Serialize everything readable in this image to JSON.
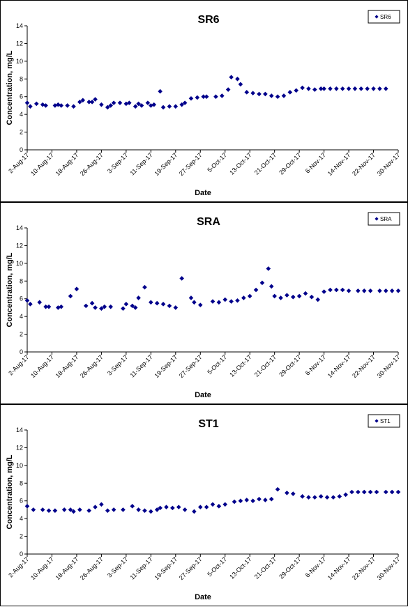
{
  "chart_data": [
    {
      "type": "scatter",
      "title": "SR6",
      "xlabel": "Date",
      "ylabel": "Concentration, mg/L",
      "ylim": [
        0,
        14
      ],
      "yticks": [
        0,
        2,
        4,
        6,
        8,
        10,
        12,
        14
      ],
      "xlim": [
        "2-Aug-17",
        "30-Nov-17"
      ],
      "xtick_labels": [
        "2-Aug-17",
        "10-Aug-17",
        "18-Aug-17",
        "26-Aug-17",
        "3-Sep-17",
        "11-Sep-17",
        "19-Sep-17",
        "27-Sep-17",
        "5-Oct-17",
        "13-Oct-17",
        "21-Oct-17",
        "29-Oct-17",
        "6-Nov-17",
        "14-Nov-17",
        "22-Nov-17",
        "30-Nov-17"
      ],
      "grid": false,
      "legend_position": "top-right",
      "series": [
        {
          "name": "SR6",
          "color": "#00008b",
          "x": [
            "2-Aug-17",
            "3-Aug-17",
            "5-Aug-17",
            "7-Aug-17",
            "8-Aug-17",
            "11-Aug-17",
            "12-Aug-17",
            "13-Aug-17",
            "15-Aug-17",
            "17-Aug-17",
            "19-Aug-17",
            "20-Aug-17",
            "22-Aug-17",
            "23-Aug-17",
            "24-Aug-17",
            "26-Aug-17",
            "28-Aug-17",
            "29-Aug-17",
            "30-Aug-17",
            "1-Sep-17",
            "3-Sep-17",
            "4-Sep-17",
            "6-Sep-17",
            "7-Sep-17",
            "8-Sep-17",
            "10-Sep-17",
            "11-Sep-17",
            "12-Sep-17",
            "14-Sep-17",
            "15-Sep-17",
            "17-Sep-17",
            "19-Sep-17",
            "21-Sep-17",
            "22-Sep-17",
            "24-Sep-17",
            "26-Sep-17",
            "28-Sep-17",
            "29-Sep-17",
            "2-Oct-17",
            "4-Oct-17",
            "6-Oct-17",
            "7-Oct-17",
            "9-Oct-17",
            "10-Oct-17",
            "12-Oct-17",
            "14-Oct-17",
            "16-Oct-17",
            "18-Oct-17",
            "20-Oct-17",
            "22-Oct-17",
            "24-Oct-17",
            "26-Oct-17",
            "28-Oct-17",
            "30-Oct-17",
            "1-Nov-17",
            "3-Nov-17",
            "5-Nov-17",
            "6-Nov-17",
            "8-Nov-17",
            "10-Nov-17",
            "12-Nov-17",
            "14-Nov-17",
            "16-Nov-17",
            "18-Nov-17",
            "20-Nov-17",
            "22-Nov-17",
            "24-Nov-17",
            "26-Nov-17"
          ],
          "y": [
            5.3,
            4.9,
            5.2,
            5.1,
            5.0,
            5.0,
            5.1,
            5.0,
            5.0,
            4.9,
            5.4,
            5.6,
            5.4,
            5.4,
            5.7,
            5.1,
            4.8,
            5.0,
            5.3,
            5.3,
            5.2,
            5.3,
            4.9,
            5.2,
            5.0,
            5.3,
            5.0,
            5.1,
            6.6,
            4.8,
            4.9,
            4.9,
            5.1,
            5.3,
            5.8,
            5.9,
            6.0,
            6.0,
            6.0,
            6.1,
            6.8,
            8.2,
            8.0,
            7.4,
            6.5,
            6.4,
            6.3,
            6.3,
            6.1,
            6.0,
            6.1,
            6.5,
            6.7,
            7.0,
            6.9,
            6.8,
            6.9,
            6.9,
            6.9,
            6.9,
            6.9,
            6.9,
            6.9,
            6.9,
            6.9,
            6.9,
            6.9,
            6.9
          ]
        }
      ]
    },
    {
      "type": "scatter",
      "title": "SRA",
      "xlabel": "Date",
      "ylabel": "Concentration, mg/L",
      "ylim": [
        0,
        14
      ],
      "yticks": [
        0,
        2,
        4,
        6,
        8,
        10,
        12,
        14
      ],
      "xlim": [
        "2-Aug-17",
        "30-Nov-17"
      ],
      "xtick_labels": [
        "2-Aug-17",
        "10-Aug-17",
        "18-Aug-17",
        "26-Aug-17",
        "3-Sep-17",
        "11-Sep-17",
        "19-Sep-17",
        "27-Sep-17",
        "5-Oct-17",
        "13-Oct-17",
        "21-Oct-17",
        "29-Oct-17",
        "6-Nov-17",
        "14-Nov-17",
        "22-Nov-17",
        "30-Nov-17"
      ],
      "grid": false,
      "legend_position": "top-right",
      "series": [
        {
          "name": "SRA",
          "color": "#00008b",
          "x": [
            "2-Aug-17",
            "3-Aug-17",
            "6-Aug-17",
            "8-Aug-17",
            "9-Aug-17",
            "12-Aug-17",
            "13-Aug-17",
            "16-Aug-17",
            "18-Aug-17",
            "21-Aug-17",
            "23-Aug-17",
            "24-Aug-17",
            "26-Aug-17",
            "27-Aug-17",
            "29-Aug-17",
            "2-Sep-17",
            "3-Sep-17",
            "5-Sep-17",
            "6-Sep-17",
            "7-Sep-17",
            "9-Sep-17",
            "11-Sep-17",
            "13-Sep-17",
            "15-Sep-17",
            "17-Sep-17",
            "19-Sep-17",
            "21-Sep-17",
            "24-Sep-17",
            "25-Sep-17",
            "27-Sep-17",
            "1-Oct-17",
            "3-Oct-17",
            "5-Oct-17",
            "7-Oct-17",
            "9-Oct-17",
            "11-Oct-17",
            "13-Oct-17",
            "15-Oct-17",
            "17-Oct-17",
            "19-Oct-17",
            "20-Oct-17",
            "21-Oct-17",
            "23-Oct-17",
            "25-Oct-17",
            "27-Oct-17",
            "29-Oct-17",
            "31-Oct-17",
            "2-Nov-17",
            "4-Nov-17",
            "6-Nov-17",
            "8-Nov-17",
            "10-Nov-17",
            "12-Nov-17",
            "14-Nov-17",
            "17-Nov-17",
            "19-Nov-17",
            "21-Nov-17",
            "24-Nov-17",
            "26-Nov-17",
            "28-Nov-17",
            "30-Nov-17"
          ],
          "y": [
            5.8,
            5.4,
            5.6,
            5.1,
            5.1,
            5.0,
            5.1,
            6.3,
            7.1,
            5.2,
            5.5,
            5.0,
            4.9,
            5.1,
            5.1,
            4.9,
            5.4,
            5.2,
            5.0,
            6.1,
            7.3,
            5.6,
            5.5,
            5.4,
            5.2,
            5.0,
            8.3,
            6.1,
            5.6,
            5.3,
            5.7,
            5.6,
            5.9,
            5.7,
            5.8,
            6.1,
            6.3,
            7.0,
            7.8,
            9.4,
            7.4,
            6.3,
            6.1,
            6.4,
            6.2,
            6.3,
            6.6,
            6.2,
            5.9,
            6.8,
            7.0,
            7.0,
            7.0,
            6.9,
            6.9,
            6.9,
            6.9,
            6.9,
            6.9,
            6.9,
            6.9
          ]
        }
      ]
    },
    {
      "type": "scatter",
      "title": "ST1",
      "xlabel": "Date",
      "ylabel": "Concentration, mg/L",
      "ylim": [
        0,
        14
      ],
      "yticks": [
        0,
        2,
        4,
        6,
        8,
        10,
        12,
        14
      ],
      "xlim": [
        "2-Aug-17",
        "30-Nov-17"
      ],
      "xtick_labels": [
        "2-Aug-17",
        "10-Aug-17",
        "18-Aug-17",
        "26-Aug-17",
        "3-Sep-17",
        "11-Sep-17",
        "19-Sep-17",
        "27-Sep-17",
        "5-Oct-17",
        "13-Oct-17",
        "21-Oct-17",
        "29-Oct-17",
        "6-Nov-17",
        "14-Nov-17",
        "22-Nov-17",
        "30-Nov-17"
      ],
      "grid": false,
      "legend_position": "top-right",
      "series": [
        {
          "name": "ST1",
          "color": "#00008b",
          "x": [
            "2-Aug-17",
            "4-Aug-17",
            "7-Aug-17",
            "9-Aug-17",
            "11-Aug-17",
            "14-Aug-17",
            "16-Aug-17",
            "17-Aug-17",
            "19-Aug-17",
            "22-Aug-17",
            "24-Aug-17",
            "26-Aug-17",
            "28-Aug-17",
            "30-Aug-17",
            "2-Sep-17",
            "5-Sep-17",
            "7-Sep-17",
            "9-Sep-17",
            "11-Sep-17",
            "13-Sep-17",
            "14-Sep-17",
            "16-Sep-17",
            "18-Sep-17",
            "20-Sep-17",
            "22-Sep-17",
            "25-Sep-17",
            "27-Sep-17",
            "29-Sep-17",
            "1-Oct-17",
            "3-Oct-17",
            "5-Oct-17",
            "8-Oct-17",
            "10-Oct-17",
            "12-Oct-17",
            "14-Oct-17",
            "16-Oct-17",
            "18-Oct-17",
            "20-Oct-17",
            "22-Oct-17",
            "25-Oct-17",
            "27-Oct-17",
            "30-Oct-17",
            "1-Nov-17",
            "3-Nov-17",
            "5-Nov-17",
            "7-Nov-17",
            "9-Nov-17",
            "11-Nov-17",
            "13-Nov-17",
            "15-Nov-17",
            "17-Nov-17",
            "19-Nov-17",
            "21-Nov-17",
            "23-Nov-17",
            "26-Nov-17",
            "28-Nov-17",
            "30-Nov-17"
          ],
          "y": [
            5.4,
            5.0,
            5.0,
            4.9,
            4.9,
            5.0,
            5.0,
            4.8,
            5.0,
            4.9,
            5.3,
            5.6,
            4.9,
            5.0,
            5.0,
            5.4,
            5.0,
            4.9,
            4.8,
            5.0,
            5.2,
            5.3,
            5.2,
            5.3,
            5.0,
            4.8,
            5.3,
            5.3,
            5.6,
            5.4,
            5.6,
            5.9,
            6.0,
            6.1,
            6.0,
            6.2,
            6.1,
            6.2,
            7.3,
            6.9,
            6.8,
            6.5,
            6.4,
            6.4,
            6.5,
            6.4,
            6.4,
            6.5,
            6.7,
            7.0,
            7.0,
            7.0,
            7.0,
            7.0,
            7.0,
            7.0,
            7.0
          ]
        }
      ]
    }
  ]
}
